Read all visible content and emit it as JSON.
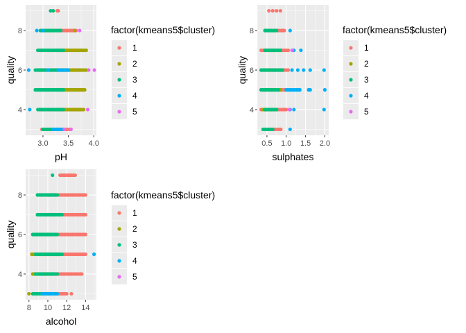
{
  "colors": {
    "panel_bg": "#EBEBEB",
    "grid_major": "#FFFFFF",
    "tick_text": "#4D4D4D",
    "cluster_1": "#F8766D",
    "cluster_2": "#A3A500",
    "cluster_3": "#00BF7D",
    "cluster_4": "#00B0F6",
    "cluster_5": "#E76BF3"
  },
  "chart_data": [
    {
      "type": "scatter",
      "xlabel": "pH",
      "ylabel": "quality",
      "xlim": [
        2.66,
        4.05
      ],
      "ylim": [
        2.7,
        9.3
      ],
      "xticks": [
        3.0,
        3.5,
        4.0
      ],
      "xtick_labels": [
        "3.0",
        "3.5",
        "4.0"
      ],
      "yticks": [
        4,
        6,
        8
      ],
      "ytick_labels": [
        "4",
        "6",
        "8"
      ],
      "legend": {
        "title": "factor(kmeans5$cluster)",
        "labels": [
          "1",
          "2",
          "3",
          "4",
          "5"
        ],
        "placement": "right"
      },
      "series": [
        {
          "name": "1",
          "segments": [
            [
              3,
              2.98,
              3.55
            ],
            [
              4,
              2.95,
              3.75
            ],
            [
              5,
              2.9,
              3.8
            ],
            [
              6,
              2.9,
              3.75
            ],
            [
              7,
              2.95,
              3.75
            ],
            [
              8,
              3.0,
              3.65
            ]
          ],
          "points": [
            [
              3.2,
              9
            ],
            [
              3.28,
              9
            ],
            [
              3.3,
              9
            ]
          ]
        },
        {
          "name": "2",
          "segments": [
            [
              4,
              3.25,
              3.8
            ],
            [
              5,
              3.2,
              3.82
            ],
            [
              6,
              3.25,
              3.85
            ],
            [
              7,
              3.3,
              3.85
            ]
          ],
          "points": [
            [
              3.68,
              4
            ],
            [
              3.62,
              8
            ]
          ]
        },
        {
          "name": "3",
          "segments": [
            [
              3,
              3.0,
              3.3
            ],
            [
              4,
              2.9,
              3.4
            ],
            [
              5,
              2.85,
              3.4
            ],
            [
              6,
              2.85,
              3.5
            ],
            [
              7,
              2.9,
              3.4
            ],
            [
              8,
              2.95,
              3.35
            ]
          ],
          "points": [
            [
              3.15,
              9
            ],
            [
              3.2,
              9
            ]
          ]
        },
        {
          "name": "4",
          "segments": [
            [
              3,
              3.2,
              3.4
            ],
            [
              6,
              3.3,
              3.5
            ]
          ],
          "points": [
            [
              2.74,
              4
            ],
            [
              2.88,
              8
            ],
            [
              3.0,
              8
            ],
            [
              3.1,
              6
            ],
            [
              2.72,
              6
            ]
          ]
        },
        {
          "name": "5",
          "segments": [],
          "points": [
            [
              3.42,
              3
            ],
            [
              3.55,
              3
            ],
            [
              3.88,
              4
            ],
            [
              4.01,
              6
            ],
            [
              3.9,
              6
            ],
            [
              3.72,
              8
            ]
          ]
        }
      ]
    },
    {
      "type": "scatter",
      "xlabel": "sulphates",
      "ylabel": "quality",
      "xlim": [
        0.25,
        2.1
      ],
      "ylim": [
        2.7,
        9.3
      ],
      "xticks": [
        0.5,
        1.0,
        1.5,
        2.0
      ],
      "xtick_labels": [
        "0.5",
        "1.0",
        "1.5",
        "2.0"
      ],
      "yticks": [
        4,
        6,
        8
      ],
      "ytick_labels": [
        "4",
        "6",
        "8"
      ],
      "legend": {
        "title": "factor(kmeans5$cluster)",
        "labels": [
          "1",
          "2",
          "3",
          "4",
          "5"
        ],
        "placement": "right"
      },
      "series": [
        {
          "name": "1",
          "segments": [
            [
              3,
              0.5,
              0.86
            ],
            [
              4,
              0.35,
              1.0
            ],
            [
              5,
              0.35,
              1.05
            ],
            [
              6,
              0.35,
              1.05
            ],
            [
              7,
              0.35,
              1.05
            ],
            [
              8,
              0.45,
              0.95
            ]
          ],
          "points": [
            [
              0.55,
              9
            ],
            [
              0.65,
              9
            ],
            [
              0.75,
              9
            ],
            [
              0.85,
              9
            ]
          ]
        },
        {
          "name": "2",
          "segments": [
            [
              4,
              0.4,
              0.75
            ],
            [
              5,
              0.45,
              0.85
            ],
            [
              6,
              0.5,
              0.9
            ],
            [
              7,
              0.5,
              0.85
            ]
          ],
          "points": []
        },
        {
          "name": "3",
          "segments": [
            [
              3,
              0.4,
              0.65
            ],
            [
              4,
              0.45,
              0.75
            ],
            [
              5,
              0.35,
              0.8
            ],
            [
              6,
              0.35,
              0.9
            ],
            [
              7,
              0.45,
              0.85
            ],
            [
              8,
              0.45,
              0.75
            ]
          ],
          "points": []
        },
        {
          "name": "4",
          "segments": [
            [
              5,
              1.0,
              1.35
            ]
          ],
          "points": [
            [
              1.1,
              3
            ],
            [
              1.1,
              4
            ],
            [
              1.2,
              4
            ],
            [
              1.35,
              5
            ],
            [
              1.58,
              5
            ],
            [
              1.62,
              5
            ],
            [
              2.0,
              5
            ],
            [
              1.15,
              6
            ],
            [
              1.3,
              6
            ],
            [
              1.45,
              6
            ],
            [
              1.62,
              6
            ],
            [
              1.98,
              6
            ],
            [
              1.2,
              7
            ],
            [
              1.38,
              7
            ],
            [
              1.1,
              8
            ],
            [
              1.98,
              4
            ]
          ]
        },
        {
          "name": "5",
          "segments": [],
          "points": [
            [
              1.08,
              4
            ],
            [
              1.15,
              7
            ]
          ]
        }
      ]
    },
    {
      "type": "scatter",
      "xlabel": "alcohol",
      "ylabel": "quality",
      "xlim": [
        7.65,
        15.15
      ],
      "ylim": [
        2.7,
        9.3
      ],
      "xticks": [
        8,
        10,
        12,
        14
      ],
      "xtick_labels": [
        "8",
        "10",
        "12",
        "14"
      ],
      "yticks": [
        4,
        6,
        8
      ],
      "ytick_labels": [
        "4",
        "6",
        "8"
      ],
      "legend": {
        "title": "factor(kmeans5$cluster)",
        "labels": [
          "1",
          "2",
          "3",
          "4",
          "5"
        ],
        "placement": "right"
      },
      "series": [
        {
          "name": "1",
          "segments": [
            [
              3,
              9.8,
              12.0
            ],
            [
              4,
              9.5,
              13.6
            ],
            [
              5,
              9.5,
              14.0
            ],
            [
              6,
              10.0,
              14.0
            ],
            [
              7,
              10.0,
              14.0
            ],
            [
              8,
              10.0,
              14.0
            ],
            [
              9,
              11.3,
              12.9
            ]
          ],
          "points": [
            [
              12.5,
              3
            ]
          ]
        },
        {
          "name": "2",
          "segments": [
            [
              4,
              8.4,
              10.5
            ],
            [
              5,
              8.4,
              11.3
            ],
            [
              6,
              8.6,
              10.5
            ],
            [
              7,
              9.0,
              10.5
            ]
          ],
          "points": [
            [
              8.0,
              3
            ],
            [
              8.3,
              5
            ]
          ]
        },
        {
          "name": "3",
          "segments": [
            [
              3,
              8.4,
              11.0
            ],
            [
              4,
              8.7,
              11.0
            ],
            [
              5,
              8.7,
              11.5
            ],
            [
              6,
              8.4,
              11.0
            ],
            [
              7,
              8.9,
              11.5
            ],
            [
              8,
              8.9,
              11.0
            ]
          ],
          "points": [
            [
              10.5,
              9
            ]
          ]
        },
        {
          "name": "4",
          "segments": [
            [
              3,
              9.4,
              11.0
            ]
          ],
          "points": [
            [
              14.9,
              5
            ]
          ]
        },
        {
          "name": "5",
          "segments": [],
          "points": []
        }
      ]
    }
  ]
}
